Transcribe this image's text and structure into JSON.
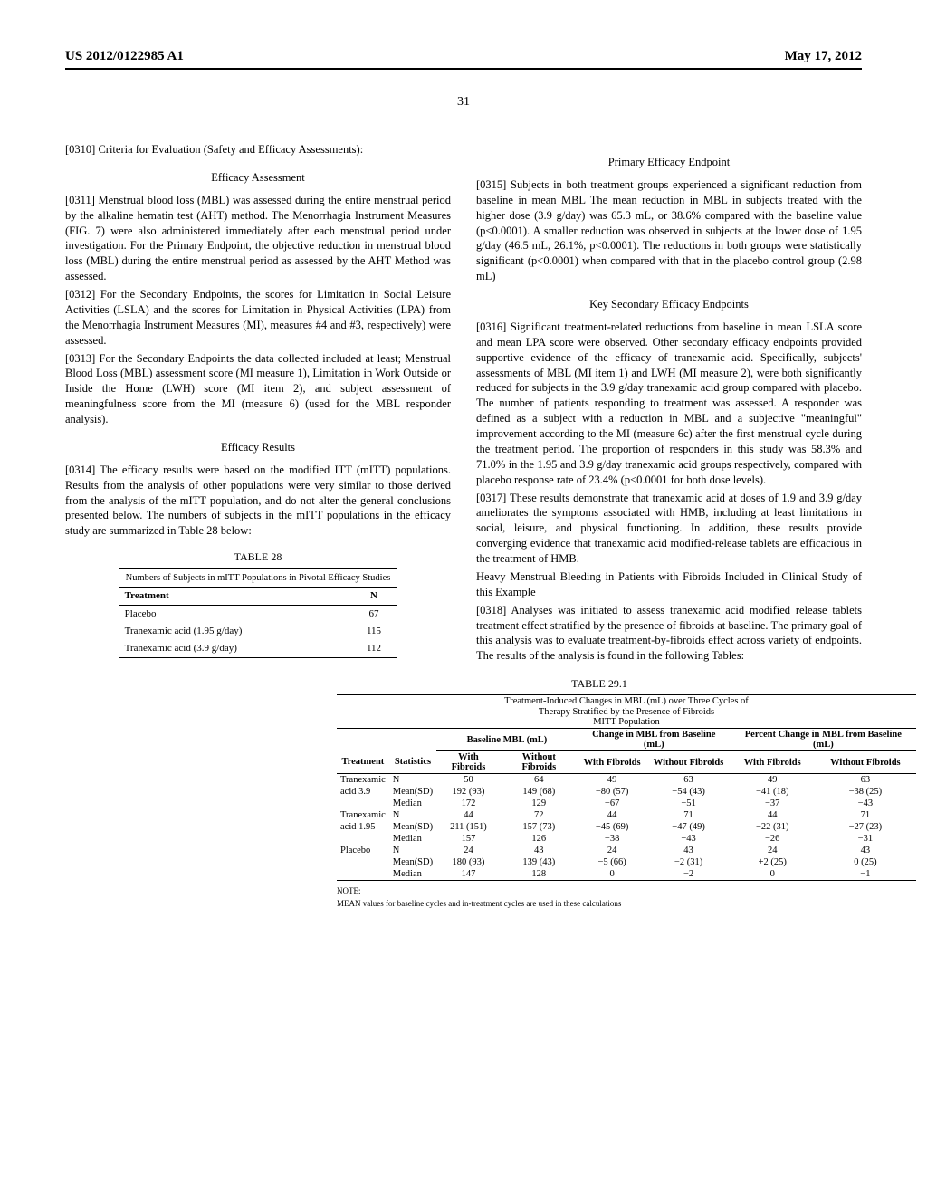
{
  "header": {
    "patent_number": "US 2012/0122985 A1",
    "date": "May 17, 2012",
    "page": "31"
  },
  "left_col": {
    "p0310": "[0310]    Criteria for Evaluation (Safety and Efficacy Assessments):",
    "h_efficacy_assessment": "Efficacy Assessment",
    "p0311": "[0311]    Menstrual blood loss (MBL) was assessed during the entire menstrual period by the alkaline hematin test (AHT) method. The Menorrhagia Instrument Measures (FIG. 7) were also administered immediately after each menstrual period under investigation. For the Primary Endpoint, the objective reduction in menstrual blood loss (MBL) during the entire menstrual period as assessed by the AHT Method was assessed.",
    "p0312": "[0312]    For the Secondary Endpoints, the scores for Limitation in Social Leisure Activities (LSLA) and the scores for Limitation in Physical Activities (LPA) from the Menorrhagia Instrument Measures (MI), measures #4 and #3, respectively) were assessed.",
    "p0313": "[0313]    For the Secondary Endpoints the data collected included at least; Menstrual Blood Loss (MBL) assessment score (MI measure 1), Limitation in Work Outside or Inside the Home (LWH) score (MI item 2), and subject assessment of meaningfulness score from the MI (measure 6) (used for the MBL responder analysis).",
    "h_efficacy_results": "Efficacy Results",
    "p0314": "[0314]    The efficacy results were based on the modified ITT (mITT) populations. Results from the analysis of other populations were very similar to those derived from the analysis of the mITT population, and do not alter the general conclusions presented below. The numbers of subjects in the mITT populations in the efficacy study are summarized in Table 28 below:",
    "table28": {
      "label": "TABLE 28",
      "caption": "Numbers of Subjects in mITT Populations in Pivotal Efficacy Studies",
      "col_treatment": "Treatment",
      "col_n": "N",
      "rows": [
        {
          "treatment": "Placebo",
          "n": "67"
        },
        {
          "treatment": "Tranexamic acid (1.95 g/day)",
          "n": "115"
        },
        {
          "treatment": "Tranexamic acid (3.9 g/day)",
          "n": "112"
        }
      ]
    }
  },
  "right_col": {
    "h_primary": "Primary Efficacy Endpoint",
    "p0315": "[0315]    Subjects in both treatment groups experienced a significant reduction from baseline in mean MBL The mean reduction in MBL in subjects treated with the higher dose (3.9 g/day) was 65.3 mL, or 38.6% compared with the baseline value (p<0.0001). A smaller reduction was observed in subjects at the lower dose of 1.95 g/day (46.5 mL, 26.1%, p<0.0001). The reductions in both groups were statistically significant (p<0.0001) when compared with that in the placebo control group (2.98 mL)",
    "h_key_secondary": "Key Secondary Efficacy Endpoints",
    "p0316": "[0316]    Significant treatment-related reductions from baseline in mean LSLA score and mean LPA score were observed. Other secondary efficacy endpoints provided supportive evidence of the efficacy of tranexamic acid. Specifically, subjects' assessments of MBL (MI item 1) and LWH (MI measure 2), were both significantly reduced for subjects in the 3.9 g/day tranexamic acid group compared with placebo. The number of patients responding to treatment was assessed. A responder was defined as a subject with a reduction in MBL and a subjective \"meaningful\" improvement according to the MI (measure 6c) after the first menstrual cycle during the treatment period. The proportion of responders in this study was 58.3% and 71.0% in the 1.95 and 3.9 g/day tranexamic acid groups respectively, compared with placebo response rate of 23.4% (p<0.0001 for both dose levels).",
    "p0317": "[0317]    These results demonstrate that tranexamic acid at doses of 1.9 and 3.9 g/day ameliorates the symptoms associated with HMB, including at least limitations in social, leisure, and physical functioning. In addition, these results provide converging evidence that tranexamic acid modified-release tablets are efficacious in the treatment of HMB.",
    "p_hmbf": "Heavy Menstrual Bleeding in Patients with Fibroids Included in Clinical Study of this Example",
    "p0318": "[0318]    Analyses was initiated to assess tranexamic acid modified release tablets treatment effect stratified by the presence of fibroids at baseline. The primary goal of this analysis was to evaluate treatment-by-fibroids effect across variety of endpoints. The results of the analysis is found in the following Tables:"
  },
  "table29": {
    "label": "TABLE 29.1",
    "caption_l1": "Treatment-Induced Changes in MBL (mL) over Three Cycles of",
    "caption_l2": "Therapy Stratified by the Presence of Fibroids",
    "caption_l3": "MITT Population",
    "grouphead_baseline": "Baseline MBL (mL)",
    "grouphead_change": "Change in MBL from Baseline (mL)",
    "grouphead_pct": "Percent Change in MBL from Baseline (mL)",
    "col_treatment": "Treatment",
    "col_stats": "Statistics",
    "col_with": "With Fibroids",
    "col_without": "Without Fibroids",
    "rows": [
      {
        "t": "Tranexamic",
        "s": "N",
        "b_w": "50",
        "b_wo": "64",
        "c_w": "49",
        "c_wo": "63",
        "p_w": "49",
        "p_wo": "63"
      },
      {
        "t": "acid 3.9",
        "s": "Mean(SD)",
        "b_w": "192 (93)",
        "b_wo": "149 (68)",
        "c_w": "−80 (57)",
        "c_wo": "−54 (43)",
        "p_w": "−41 (18)",
        "p_wo": "−38 (25)"
      },
      {
        "t": "",
        "s": "Median",
        "b_w": "172",
        "b_wo": "129",
        "c_w": "−67",
        "c_wo": "−51",
        "p_w": "−37",
        "p_wo": "−43"
      },
      {
        "t": "Tranexamic",
        "s": "N",
        "b_w": "44",
        "b_wo": "72",
        "c_w": "44",
        "c_wo": "71",
        "p_w": "44",
        "p_wo": "71"
      },
      {
        "t": "acid 1.95",
        "s": "Mean(SD)",
        "b_w": "211 (151)",
        "b_wo": "157 (73)",
        "c_w": "−45 (69)",
        "c_wo": "−47 (49)",
        "p_w": "−22 (31)",
        "p_wo": "−27 (23)"
      },
      {
        "t": "",
        "s": "Median",
        "b_w": "157",
        "b_wo": "126",
        "c_w": "−38",
        "c_wo": "−43",
        "p_w": "−26",
        "p_wo": "−31"
      },
      {
        "t": "Placebo",
        "s": "N",
        "b_w": "24",
        "b_wo": "43",
        "c_w": "24",
        "c_wo": "43",
        "p_w": "24",
        "p_wo": "43"
      },
      {
        "t": "",
        "s": "Mean(SD)",
        "b_w": "180 (93)",
        "b_wo": "139 (43)",
        "c_w": "−5 (66)",
        "c_wo": "−2 (31)",
        "p_w": "+2 (25)",
        "p_wo": "0 (25)"
      },
      {
        "t": "",
        "s": "Median",
        "b_w": "147",
        "b_wo": "128",
        "c_w": "0",
        "c_wo": "−2",
        "p_w": "0",
        "p_wo": "−1"
      }
    ],
    "note1": "NOTE:",
    "note2": "MEAN values for baseline cycles and in-treatment cycles are used in these calculations"
  }
}
